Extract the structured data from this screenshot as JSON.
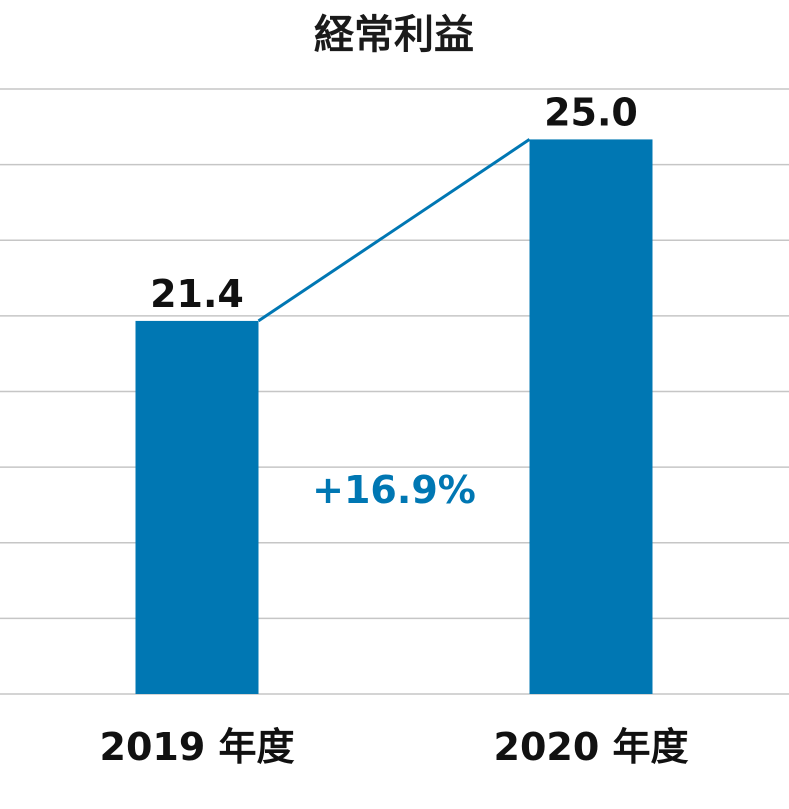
{
  "chart_data": {
    "type": "bar",
    "title": "経常利益",
    "categories": [
      "2019 年度",
      "2020 年度"
    ],
    "values": [
      21.4,
      25.0
    ],
    "value_labels": [
      "21.4",
      "25.0"
    ],
    "ylim": [
      14,
      26
    ],
    "grid_step": 1.5,
    "grid": true,
    "bar_color": "#0077b3",
    "annotation": {
      "text": "+16.9%",
      "color": "#0077b3"
    }
  }
}
